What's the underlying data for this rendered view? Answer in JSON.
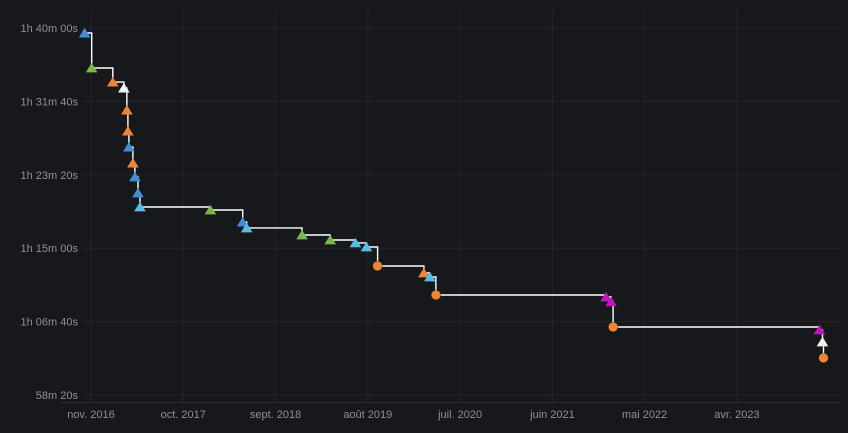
{
  "chart_data": {
    "type": "line",
    "variant": "step-after-record-progression",
    "title": "",
    "xlabel": "",
    "ylabel": "",
    "grid": true,
    "legend": "none",
    "x_range_years": [
      2016.764,
      2024.234
    ],
    "y_range_seconds": [
      3452,
      6123
    ],
    "x_ticks": [
      {
        "label": "nov. 2016",
        "year": 2016.833
      },
      {
        "label": "oct. 2017",
        "year": 2017.75
      },
      {
        "label": "sept. 2018",
        "year": 2018.667
      },
      {
        "label": "août 2019",
        "year": 2019.583
      },
      {
        "label": "juil. 2020",
        "year": 2020.5
      },
      {
        "label": "juin 2021",
        "year": 2021.417
      },
      {
        "label": "mai 2022",
        "year": 2022.333
      },
      {
        "label": "avr. 2023",
        "year": 2023.25
      }
    ],
    "y_ticks": [
      {
        "label": "1h 40m 00s",
        "seconds": 6000
      },
      {
        "label": "1h 31m 40s",
        "seconds": 5500
      },
      {
        "label": "1h 23m 20s",
        "seconds": 5000
      },
      {
        "label": "1h 15m 00s",
        "seconds": 4500
      },
      {
        "label": "1h 06m 40s",
        "seconds": 4000
      },
      {
        "label": "58m 20s",
        "seconds": 3500
      }
    ],
    "palette": {
      "blue": "#3e8ed8",
      "green": "#7ab648",
      "orange": "#ef8534",
      "cyan": "#55bde8",
      "purple": "#bb1abb",
      "white": "#f2f2f2",
      "line": "#ffffff",
      "grid": "#232529",
      "axis": "#2c2d31",
      "tick_label": "#8f9195",
      "background": "#17181b"
    },
    "points": [
      {
        "year": 2016.77,
        "seconds": 5966,
        "time": "1h 39m 26s",
        "date": "oct. 2016",
        "shape": "triangle",
        "color": "blue"
      },
      {
        "year": 2016.84,
        "seconds": 5728,
        "time": "1h 35m 28s",
        "date": "nov. 2016",
        "shape": "triangle",
        "color": "green"
      },
      {
        "year": 2017.05,
        "seconds": 5632,
        "time": "1h 33m 52s",
        "date": "janv. 2017",
        "shape": "triangle",
        "color": "orange"
      },
      {
        "year": 2017.16,
        "seconds": 5591,
        "time": "1h 33m 11s",
        "date": "mars 2017",
        "shape": "triangle",
        "color": "white"
      },
      {
        "year": 2017.19,
        "seconds": 5441,
        "time": "1h 30m 41s",
        "date": "mars 2017",
        "shape": "triangle",
        "color": "orange"
      },
      {
        "year": 2017.2,
        "seconds": 5298,
        "time": "1h 28m 18s",
        "date": "mars 2017",
        "shape": "triangle",
        "color": "orange"
      },
      {
        "year": 2017.21,
        "seconds": 5189,
        "time": "1h 26m 29s",
        "date": "mars 2017",
        "shape": "triangle",
        "color": "blue"
      },
      {
        "year": 2017.25,
        "seconds": 5080,
        "time": "1h 24m 40s",
        "date": "avr. 2017",
        "shape": "triangle",
        "color": "orange"
      },
      {
        "year": 2017.27,
        "seconds": 4985,
        "time": "1h 23m 05s",
        "date": "avr. 2017",
        "shape": "triangle",
        "color": "blue"
      },
      {
        "year": 2017.3,
        "seconds": 4876,
        "time": "1h 21m 16s",
        "date": "avr. 2017",
        "shape": "triangle",
        "color": "blue"
      },
      {
        "year": 2017.32,
        "seconds": 4781,
        "time": "1h 19m 41s",
        "date": "mai 2017",
        "shape": "triangle",
        "color": "cyan"
      },
      {
        "year": 2018.02,
        "seconds": 4760,
        "time": "1h 19m 20s",
        "date": "janv. 2018",
        "shape": "triangle",
        "color": "green"
      },
      {
        "year": 2018.34,
        "seconds": 4678,
        "time": "1h 17m 58s",
        "date": "mai 2018",
        "shape": "triangle",
        "color": "blue"
      },
      {
        "year": 2018.38,
        "seconds": 4638,
        "time": "1h 17m 18s",
        "date": "mai 2018",
        "shape": "triangle",
        "color": "cyan"
      },
      {
        "year": 2018.93,
        "seconds": 4590,
        "time": "1h 16m 30s",
        "date": "déc. 2018",
        "shape": "triangle",
        "color": "green"
      },
      {
        "year": 2019.21,
        "seconds": 4556,
        "time": "1h 15m 56s",
        "date": "mars 2019",
        "shape": "triangle",
        "color": "green"
      },
      {
        "year": 2019.46,
        "seconds": 4536,
        "time": "1h 15m 36s",
        "date": "juin 2019",
        "shape": "triangle",
        "color": "cyan"
      },
      {
        "year": 2019.57,
        "seconds": 4508,
        "time": "1h 15m 08s",
        "date": "août 2019",
        "shape": "triangle",
        "color": "cyan"
      },
      {
        "year": 2019.68,
        "seconds": 4379,
        "time": "1h 12m 59s",
        "date": "sept. 2019",
        "shape": "circle",
        "color": "orange"
      },
      {
        "year": 2020.14,
        "seconds": 4331,
        "time": "1h 12m 11s",
        "date": "févr. 2020",
        "shape": "triangle",
        "color": "orange"
      },
      {
        "year": 2020.2,
        "seconds": 4304,
        "time": "1h 11m 44s",
        "date": "mars 2020",
        "shape": "triangle",
        "color": "cyan"
      },
      {
        "year": 2020.26,
        "seconds": 4181,
        "time": "1h 09m 41s",
        "date": "avr. 2020",
        "shape": "circle",
        "color": "orange"
      },
      {
        "year": 2021.95,
        "seconds": 4168,
        "time": "1h 09m 28s",
        "date": "déc. 2021",
        "shape": "triangle",
        "color": "purple"
      },
      {
        "year": 2022.0,
        "seconds": 4134,
        "time": "1h 08m 54s",
        "date": "janv. 2022",
        "shape": "triangle",
        "color": "purple"
      },
      {
        "year": 2022.02,
        "seconds": 3963,
        "time": "1h 06m 03s",
        "date": "janv. 2022",
        "shape": "circle",
        "color": "orange"
      },
      {
        "year": 2024.07,
        "seconds": 3943,
        "time": "1h 05m 43s",
        "date": "janv. 2024",
        "shape": "triangle",
        "color": "purple"
      },
      {
        "year": 2024.1,
        "seconds": 3861,
        "time": "1h 04m 21s",
        "date": "févr. 2024",
        "shape": "triangle",
        "color": "white"
      },
      {
        "year": 2024.11,
        "seconds": 3752,
        "time": "1h 02m 32s",
        "date": "févr. 2024",
        "shape": "circle",
        "color": "orange"
      }
    ]
  }
}
